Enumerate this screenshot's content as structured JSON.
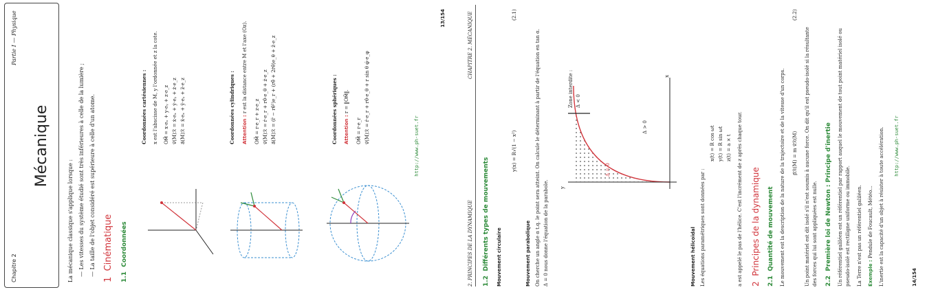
{
  "page1": {
    "chapter": "Chapitre 2",
    "part": "Partie I — Physique",
    "title": "Mécanique",
    "intro": "La mécanique classique s'applique lorsque :",
    "bullets": [
      "Les vitesses du système étudié sont très inférieures à celle de la lumière ;",
      "La taille de l'objet considéré est supérieure à celle d'un atome."
    ],
    "section1_num": "1",
    "section1_title": "Cinématique",
    "sub11_num": "1.1",
    "sub11_title": "Coordonnées",
    "cart_title": "Coordonnées cartésiennes :",
    "cart_desc": "x est l'abscisse de M, y l'ordonnée et z la cote.",
    "cart_eq1": "OM⃗ = x·eₓ + y·eᵧ + z·e_z",
    "cart_eq2": "v⃗(M)ℛ = ẋ·eₓ + ẏ·eᵧ + ż·e_z",
    "cart_eq3": "a⃗(M)ℛ = ẍ·eₓ + ÿ·eᵧ + z̈·e_z",
    "cyl_title": "Coordonnées cylindriques :",
    "cyl_attention": "Attention :",
    "cyl_desc": "r est la distance entre M et l'axe (Oz).",
    "cyl_eq1": "OM⃗ = r·e_r + z·e_z",
    "cyl_eq2": "v⃗(M)ℛ = ṙ·e_r + rθ̇·e_θ + ż·e_z",
    "cyl_eq3": "a⃗(M)ℛ = (r̈ − rθ̇²)e_r + (rθ̈ + 2ṙθ̇)e_θ + z̈·e_z",
    "sph_title": "Coordonnées sphériques :",
    "sph_attention": "Attention :",
    "sph_desc": "r = ‖OM⃗‖.",
    "sph_eq1": "OM⃗ = r·e_r",
    "sph_eq2": "v⃗(M)ℛ = ṙ·e_r + rθ̇·e_θ + r sin θ φ̇·e_φ",
    "url": "http://www.ph-suet.fr",
    "pagenum": "13/154"
  },
  "page2": {
    "header_left": "2. PRINCIPES DE LA DYNAMIQUE",
    "header_right": "CHAPITRE 2. MÉCANIQUE",
    "sub12_num": "1.2",
    "sub12_title": "Différents types de mouvements",
    "circ_title": "Mouvement circulaire",
    "circ_eq": "y(x) = R√(1 − x²)",
    "circ_eqnum": "(2.1)",
    "para_title": "Mouvement parabolique",
    "para_text1": "On cherche un angle α t.q. le point sera atteint. On calcule le déterminant à partir de l'équation en tan α.",
    "para_text2": "Δ = 0 nous donne l'équation de la parabole.",
    "diag_zone": "Zone interdite :",
    "diag_zone2": "Δ < 0",
    "diag_delta_pos": "Δ > 0",
    "diag_delta_zero": "Δ = 0",
    "diag_x": "x",
    "diag_y": "y",
    "heli_title": "Mouvement hélicoïdal",
    "heli_desc": "Les équations paramétriques sont données par :",
    "heli_eq1": "x(t) = R cos ωt",
    "heli_eq2": "y(t) = R sin ωt",
    "heli_eq3": "z(t) = a × t",
    "heli_pas": "a est appelé le pas de l'hélice. C'est l'incrément de z après chaque tour.",
    "section2_num": "2",
    "section2_title": "Principes de la dynamique",
    "sub21_num": "2.1",
    "sub21_title": "Quantité de mouvement",
    "qdm_text": "Le mouvement est la description de la nature de la trajectoire et de la vitesse d'un corps.",
    "qdm_eq": "p⃗ℛ(M) = m v⃗ℛ(M)",
    "qdm_eqnum": "(2.2)",
    "isole_text1": "Un point matériel est dit isolé s'il n'est soumis à aucune force. On dit qu'il est pseudo-isolé si la résultante",
    "isole_text2": "des forces qui lui sont appliquées est nulle.",
    "sub22_num": "2.2",
    "sub22_title": "Première loi de Newton : Principe d'inertie",
    "gal_text1": "Un référentiel galiléen est un référentiel par rapport auquel le mouvement de tout point matériel isolé ou",
    "gal_text2": "pseudo-isolé est rectiligne uniforme ou immobile.",
    "terre_text": "La Terre n'est pas un référentiel galiléen.",
    "exemple_label": "Exemple :",
    "exemple_text": "Pendule de Foucault, Météo...",
    "inertie_text": "L'inertie est la capacité d'un objet à résister à toute accélération.",
    "url": "http://www.ph-suet.fr",
    "pagenum": "14/154"
  },
  "colors": {
    "accent_red": "#d1343b",
    "accent_green": "#2e8b3a",
    "accent_blue": "#3a8fd1"
  }
}
